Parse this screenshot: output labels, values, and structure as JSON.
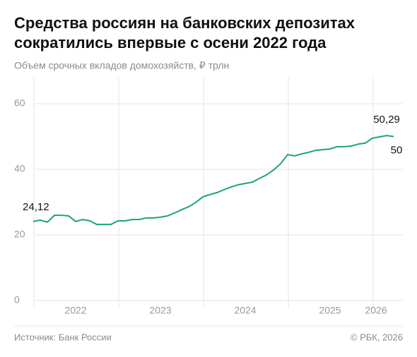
{
  "chart_data": {
    "type": "line",
    "title": [
      "Средства россиян на банковских депозитах",
      "сократились впервые с осени 2022 года"
    ],
    "subtitle": "Объем срочных вкладов домохозяйств, ₽ трлн",
    "source": "Источник: Банк России",
    "copyright": "© РБК, 2026",
    "categories": [
      null,
      null,
      null,
      null,
      null,
      null,
      "2022",
      null,
      null,
      null,
      null,
      null,
      null,
      null,
      null,
      null,
      null,
      null,
      "2023",
      null,
      null,
      null,
      null,
      null,
      null,
      null,
      null,
      null,
      null,
      null,
      "2024",
      null,
      null,
      null,
      null,
      null,
      null,
      null,
      null,
      null,
      null,
      null,
      "2025",
      null,
      null,
      null,
      null,
      null,
      null,
      "2026",
      null,
      null
    ],
    "series": [
      {
        "name": "Объем срочных вкладов",
        "color": "#1aa671",
        "values": [
          24.12,
          24.5,
          23.9,
          26.0,
          26.0,
          25.8,
          24.1,
          24.7,
          24.3,
          23.2,
          23.2,
          23.2,
          24.3,
          24.3,
          24.7,
          24.7,
          25.2,
          25.2,
          25.4,
          25.8,
          26.7,
          27.7,
          28.6,
          29.9,
          31.6,
          32.3,
          32.9,
          33.8,
          34.6,
          35.3,
          35.7,
          36.1,
          37.2,
          38.3,
          39.8,
          41.7,
          44.5,
          44.1,
          44.7,
          45.2,
          45.8,
          46.0,
          46.2,
          46.9,
          46.9,
          47.1,
          47.7,
          48.0,
          49.5,
          49.9,
          50.29,
          50
        ],
        "value_labels": [
          "24,12",
          null,
          null,
          null,
          null,
          null,
          null,
          null,
          null,
          null,
          null,
          null,
          null,
          null,
          null,
          null,
          null,
          null,
          null,
          null,
          null,
          null,
          null,
          null,
          null,
          null,
          null,
          null,
          null,
          null,
          null,
          null,
          null,
          null,
          null,
          null,
          null,
          null,
          null,
          null,
          null,
          null,
          null,
          null,
          null,
          null,
          null,
          null,
          null,
          null,
          "50,29",
          "50"
        ]
      }
    ],
    "ylim": [
      0,
      60
    ],
    "yticks": [
      0,
      20,
      40,
      60
    ],
    "grid": true
  }
}
